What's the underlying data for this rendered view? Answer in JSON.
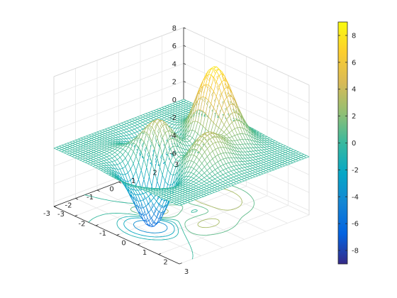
{
  "chart_data": {
    "type": "surface-mesh",
    "function": "peaks",
    "title": "",
    "xlabel": "",
    "ylabel": "",
    "zlabel": "",
    "xlim": [
      -3,
      3
    ],
    "ylim": [
      -3,
      3
    ],
    "zlim": [
      -6.5,
      8
    ],
    "grid": true,
    "colormap": "parula",
    "x_ticks": [
      "-3",
      "-2",
      "-1",
      "0",
      "1",
      "2",
      "3"
    ],
    "y_ticks": [
      "-3",
      "-2",
      "-1",
      "0",
      "1",
      "2",
      "3"
    ],
    "z_ticks": [
      "-6",
      "-4",
      "-2",
      "0",
      "2",
      "4",
      "6",
      "8"
    ],
    "colorbar": {
      "range": [
        -9,
        9
      ],
      "ticks": [
        "-8",
        "-6",
        "-4",
        "-2",
        "0",
        "2",
        "4",
        "6",
        "8"
      ]
    },
    "contour_levels": [
      -4,
      -2,
      -1,
      0,
      1,
      3
    ],
    "extrema": {
      "max": {
        "x": -0.01,
        "y": 1.58,
        "z": 8.1
      },
      "min": {
        "x": 0.23,
        "y": -1.63,
        "z": -6.55
      }
    }
  }
}
